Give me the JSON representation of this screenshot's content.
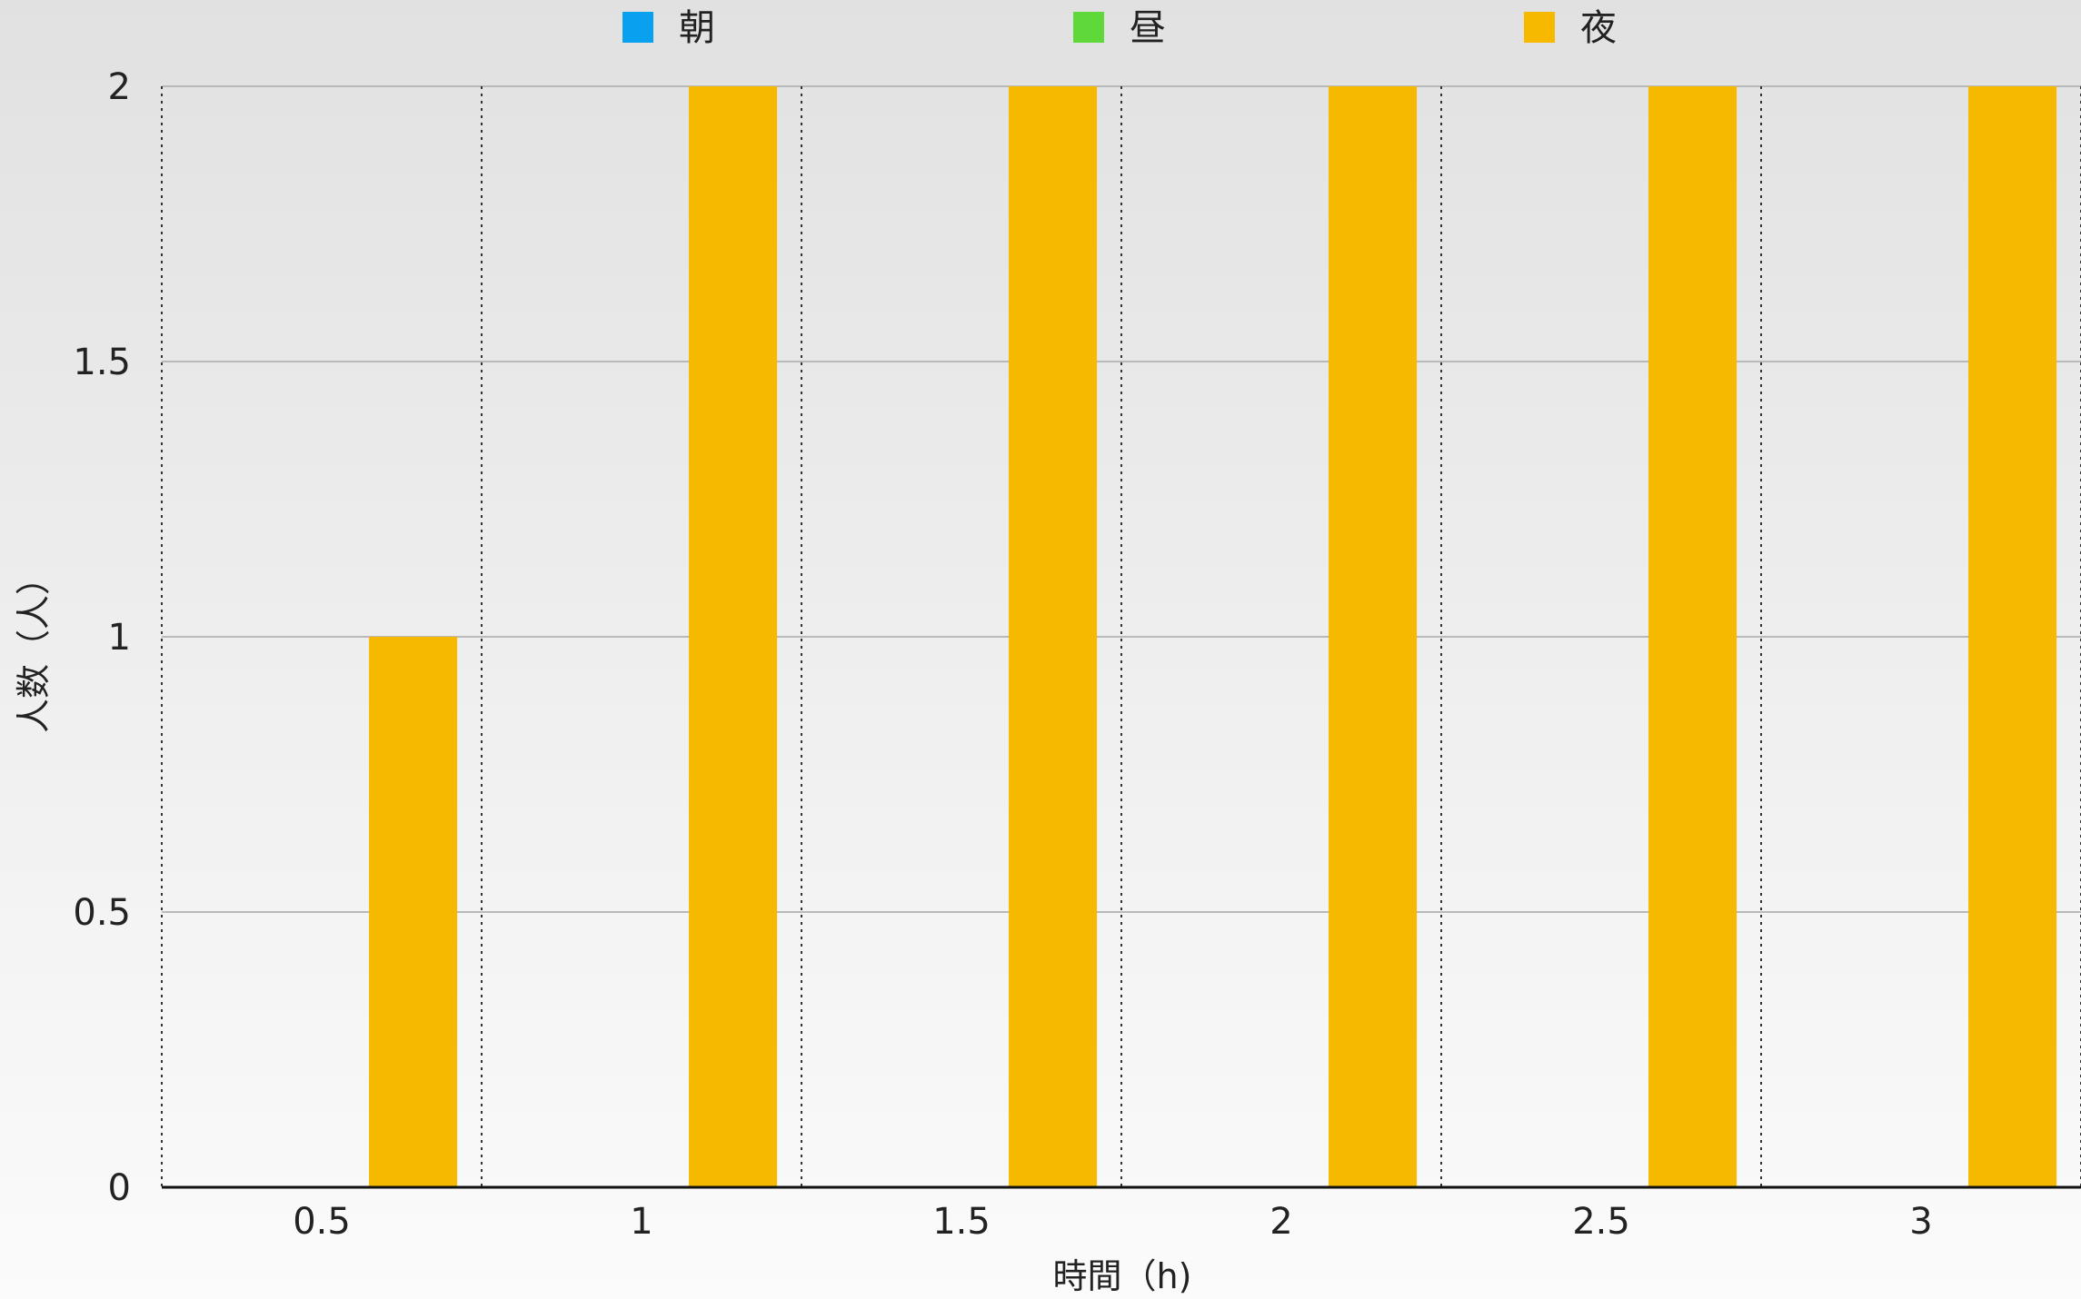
{
  "chart_data": {
    "type": "bar",
    "categories": [
      "0.5",
      "1",
      "1.5",
      "2",
      "2.5",
      "3"
    ],
    "series": [
      {
        "name": "朝",
        "color": "#0aa0f0",
        "values": [
          0,
          0,
          0,
          0,
          0,
          0
        ]
      },
      {
        "name": "昼",
        "color": "#5fd83a",
        "values": [
          0,
          0,
          0,
          0,
          0,
          0
        ]
      },
      {
        "name": "夜",
        "color": "#f6b900",
        "values": [
          1,
          2,
          2,
          2,
          2,
          2
        ]
      }
    ],
    "xlabel": "時間（h)",
    "ylabel": "人数（人）",
    "ylim": [
      0,
      2
    ],
    "yticks": [
      "0",
      "0.5",
      "1",
      "1.5",
      "2"
    ],
    "legend_position": "top-center",
    "grid": true
  }
}
